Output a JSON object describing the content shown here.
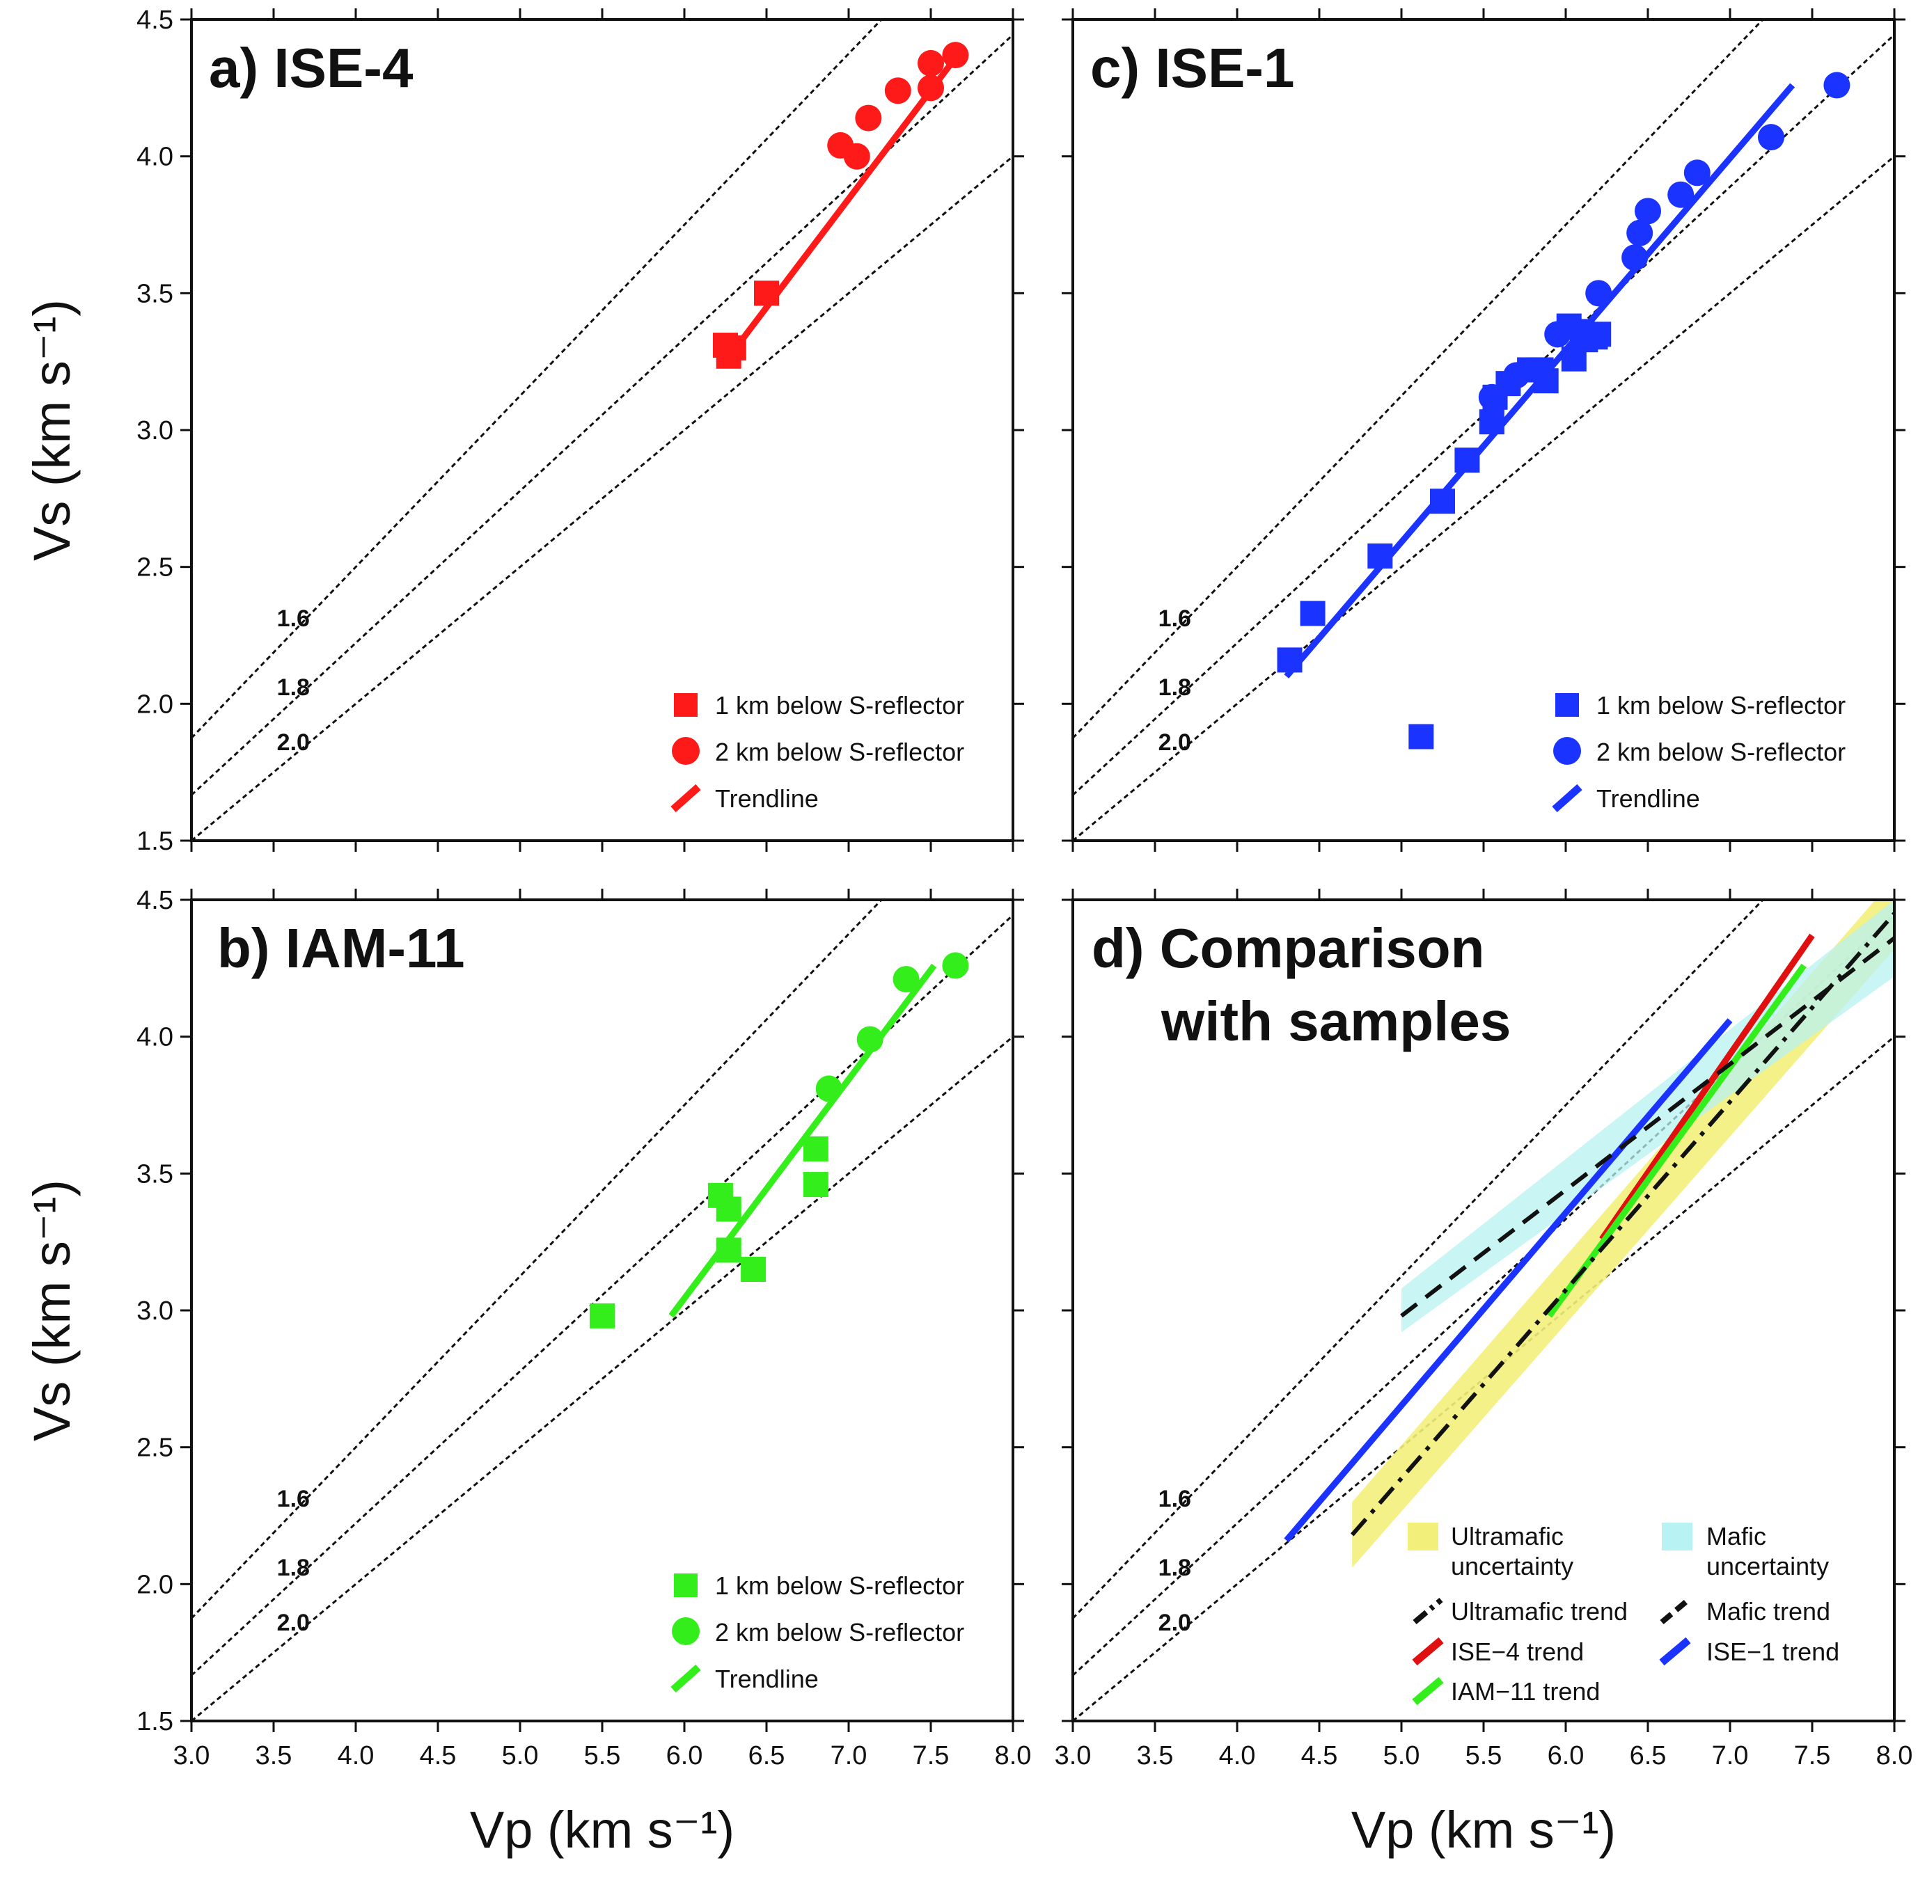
{
  "figure": {
    "y_label": "Vs (km s⁻¹)",
    "x_label": "Vp (km s⁻¹)",
    "x_ticks": [
      "3.0",
      "3.5",
      "4.0",
      "4.5",
      "5.0",
      "5.5",
      "6.0",
      "6.5",
      "7.0",
      "7.5",
      "8.0"
    ],
    "y_ticks": [
      "1.5",
      "2.0",
      "2.5",
      "3.0",
      "3.5",
      "4.0",
      "4.5"
    ],
    "ratio_labels": [
      "1.6",
      "1.8",
      "2.0"
    ]
  },
  "colors": {
    "ise4": "#ff1a1a",
    "iam11": "#33ee1a",
    "ise1": "#1a33ff",
    "comp_ise4": "#e01010",
    "ultramafic_band": "#f2f07a",
    "mafic_band": "#b8f2f2",
    "ratio_line": "#111111"
  },
  "chart_data": [
    {
      "panel": "a",
      "title": "a) ISE-4",
      "type": "scatter",
      "xlim": [
        3.0,
        8.0
      ],
      "ylim": [
        1.5,
        4.5
      ],
      "grid": false,
      "vp_vs_ratio_lines": [
        1.6,
        1.8,
        2.0
      ],
      "legend_position": "bottom-right",
      "legend": [
        "1 km below S-reflector",
        "2 km below S-reflector",
        "Trendline"
      ],
      "series": [
        {
          "name": "1 km below S-reflector",
          "marker": "square",
          "points": [
            [
              6.25,
              3.31
            ],
            [
              6.3,
              3.3
            ],
            [
              6.27,
              3.27
            ],
            [
              6.5,
              3.5
            ]
          ]
        },
        {
          "name": "2 km below S-reflector",
          "marker": "circle",
          "points": [
            [
              6.95,
              4.04
            ],
            [
              7.05,
              4.0
            ],
            [
              7.12,
              4.14
            ],
            [
              7.3,
              4.24
            ],
            [
              7.5,
              4.34
            ],
            [
              7.5,
              4.25
            ],
            [
              7.65,
              4.37
            ]
          ]
        },
        {
          "name": "Trendline",
          "marker": "line",
          "points": [
            [
              6.25,
              3.25
            ],
            [
              7.65,
              4.36
            ]
          ]
        }
      ]
    },
    {
      "panel": "b",
      "title": "b) IAM-11",
      "type": "scatter",
      "xlim": [
        3.0,
        8.0
      ],
      "ylim": [
        1.5,
        4.5
      ],
      "grid": false,
      "vp_vs_ratio_lines": [
        1.6,
        1.8,
        2.0
      ],
      "legend_position": "bottom-right",
      "legend": [
        "1 km below S-reflector",
        "2 km below S-reflector",
        "Trendline"
      ],
      "series": [
        {
          "name": "1 km below S-reflector",
          "marker": "square",
          "points": [
            [
              5.5,
              2.98
            ],
            [
              6.22,
              3.42
            ],
            [
              6.27,
              3.37
            ],
            [
              6.27,
              3.22
            ],
            [
              6.42,
              3.15
            ],
            [
              6.8,
              3.59
            ],
            [
              6.8,
              3.46
            ]
          ]
        },
        {
          "name": "2 km below S-reflector",
          "marker": "circle",
          "points": [
            [
              6.88,
              3.81
            ],
            [
              7.13,
              3.99
            ],
            [
              7.35,
              4.21
            ],
            [
              7.65,
              4.26
            ]
          ]
        },
        {
          "name": "Trendline",
          "marker": "line",
          "points": [
            [
              5.92,
              2.98
            ],
            [
              7.52,
              4.26
            ]
          ]
        }
      ]
    },
    {
      "panel": "c",
      "title": "c) ISE-1",
      "type": "scatter",
      "xlim": [
        3.0,
        8.0
      ],
      "ylim": [
        1.5,
        4.5
      ],
      "grid": false,
      "vp_vs_ratio_lines": [
        1.6,
        1.8,
        2.0
      ],
      "legend_position": "bottom-right",
      "legend": [
        "1 km below S-reflector",
        "2 km below S-reflector",
        "Trendline"
      ],
      "series": [
        {
          "name": "1 km below S-reflector",
          "marker": "square",
          "points": [
            [
              4.32,
              2.16
            ],
            [
              4.46,
              2.33
            ],
            [
              4.87,
              2.54
            ],
            [
              5.12,
              1.88
            ],
            [
              5.25,
              2.74
            ],
            [
              5.4,
              2.89
            ],
            [
              5.55,
              3.03
            ],
            [
              5.57,
              3.12
            ],
            [
              5.65,
              3.17
            ],
            [
              5.78,
              3.22
            ],
            [
              5.85,
              3.22
            ],
            [
              5.88,
              3.18
            ],
            [
              6.02,
              3.38
            ],
            [
              6.05,
              3.26
            ],
            [
              6.12,
              3.33
            ],
            [
              6.18,
              3.34
            ],
            [
              6.1,
              3.36
            ],
            [
              6.2,
              3.35
            ]
          ]
        },
        {
          "name": "2 km below S-reflector",
          "marker": "circle",
          "points": [
            [
              5.55,
              3.12
            ],
            [
              5.7,
              3.2
            ],
            [
              5.95,
              3.35
            ],
            [
              6.2,
              3.5
            ],
            [
              6.42,
              3.63
            ],
            [
              6.45,
              3.72
            ],
            [
              6.5,
              3.8
            ],
            [
              6.7,
              3.86
            ],
            [
              6.8,
              3.94
            ],
            [
              7.25,
              4.07
            ],
            [
              7.65,
              4.26
            ]
          ]
        },
        {
          "name": "Trendline",
          "marker": "line",
          "points": [
            [
              4.3,
              2.1
            ],
            [
              7.38,
              4.26
            ]
          ]
        }
      ]
    },
    {
      "panel": "d",
      "title_line1": "d) Comparison",
      "title_line2": "with samples",
      "type": "line",
      "xlim": [
        3.0,
        8.0
      ],
      "ylim": [
        1.5,
        4.5
      ],
      "grid": false,
      "vp_vs_ratio_lines": [
        1.6,
        1.8,
        2.0
      ],
      "legend_position": "bottom-right",
      "legend": [
        {
          "line1": "Ultramafic",
          "line2": "uncertainty"
        },
        {
          "line1": "Mafic",
          "line2": "uncertainty"
        },
        {
          "line1": "Ultramafic trend"
        },
        {
          "line1": "Mafic trend"
        },
        {
          "line1": "ISE−4 trend"
        },
        {
          "line1": "ISE−1 trend"
        },
        {
          "line1": "IAM−11 trend"
        }
      ],
      "series": [
        {
          "name": "Ultramafic uncertainty",
          "style": "band",
          "x": [
            4.7,
            8.0
          ],
          "lower": [
            2.06,
            4.32
          ],
          "upper": [
            2.3,
            4.58
          ]
        },
        {
          "name": "Mafic uncertainty",
          "style": "band",
          "x": [
            5.0,
            8.0
          ],
          "lower": [
            2.92,
            4.22
          ],
          "upper": [
            3.08,
            4.5
          ]
        },
        {
          "name": "Ultramafic trend",
          "style": "dash-dot",
          "points": [
            [
              4.7,
              2.18
            ],
            [
              8.0,
              4.45
            ]
          ]
        },
        {
          "name": "Mafic trend",
          "style": "dashed",
          "points": [
            [
              5.0,
              2.98
            ],
            [
              8.0,
              4.36
            ]
          ]
        },
        {
          "name": "ISE−4 trend",
          "style": "solid",
          "points": [
            [
              6.22,
              3.26
            ],
            [
              7.5,
              4.37
            ]
          ]
        },
        {
          "name": "IAM−11 trend",
          "style": "solid",
          "points": [
            [
              5.9,
              2.98
            ],
            [
              7.45,
              4.26
            ]
          ]
        },
        {
          "name": "ISE−1 trend",
          "style": "solid",
          "points": [
            [
              4.3,
              2.16
            ],
            [
              7.0,
              4.06
            ]
          ]
        }
      ]
    }
  ]
}
